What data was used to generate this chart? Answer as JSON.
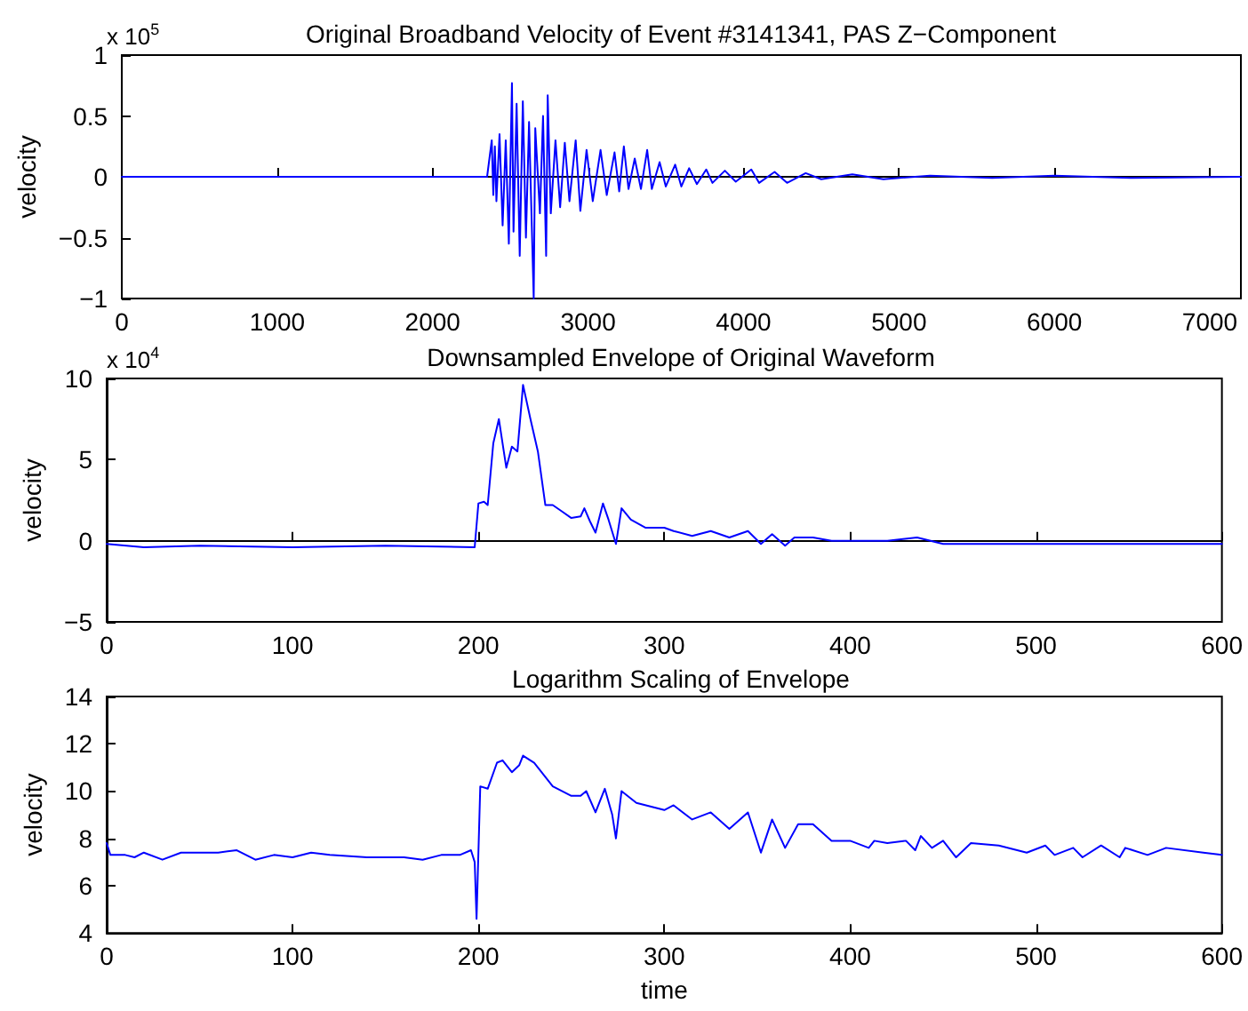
{
  "chart_data": [
    {
      "type": "line",
      "title": "Original Broadband Velocity of Event #3141341, PAS Z−Component",
      "ylabel": "velocity",
      "annotations": [
        "x 10$^{5}$"
      ],
      "xlim": [
        0,
        7200
      ],
      "xticks": [
        0,
        1000,
        2000,
        3000,
        4000,
        5000,
        6000,
        7000
      ],
      "ylim": [
        -1,
        1
      ],
      "yticks": [
        -1,
        -0.5,
        0,
        0.5,
        1
      ],
      "marker": "none",
      "line_style": "solid",
      "series": [
        {
          "color": "#0000ff",
          "x": [
            0,
            500,
            1000,
            1500,
            2000,
            2350,
            2380,
            2390,
            2400,
            2410,
            2430,
            2450,
            2470,
            2490,
            2510,
            2520,
            2540,
            2560,
            2580,
            2600,
            2620,
            2650,
            2660,
            2690,
            2710,
            2730,
            2740,
            2760,
            2790,
            2820,
            2850,
            2880,
            2920,
            2950,
            2990,
            3030,
            3080,
            3120,
            3170,
            3200,
            3230,
            3260,
            3300,
            3340,
            3380,
            3410,
            3460,
            3500,
            3560,
            3600,
            3650,
            3700,
            3760,
            3800,
            3880,
            3950,
            4050,
            4100,
            4200,
            4280,
            4400,
            4500,
            4700,
            4900,
            5200,
            5600,
            6000,
            6500,
            7200
          ],
          "values": [
            0,
            0,
            0,
            0,
            0,
            0,
            0.3,
            -0.15,
            0.25,
            -0.2,
            0.35,
            -0.4,
            0.3,
            -0.55,
            0.77,
            -0.45,
            0.6,
            -0.65,
            0.62,
            -0.5,
            0.45,
            -1,
            0.4,
            -0.3,
            0.5,
            -0.65,
            0.67,
            -0.3,
            0.3,
            -0.25,
            0.28,
            -0.2,
            0.3,
            -0.28,
            0.22,
            -0.2,
            0.22,
            -0.15,
            0.2,
            -0.12,
            0.25,
            -0.1,
            0.15,
            -0.1,
            0.22,
            -0.1,
            0.12,
            -0.08,
            0.1,
            -0.08,
            0.07,
            -0.06,
            0.06,
            -0.05,
            0.05,
            -0.04,
            0.06,
            -0.05,
            0.04,
            -0.05,
            0.03,
            -0.02,
            0.02,
            -0.02,
            0.01,
            -0.01,
            0.01,
            -0.01,
            0
          ]
        }
      ]
    },
    {
      "type": "line",
      "title": "Downsampled Envelope of Original Waveform",
      "ylabel": "velocity",
      "annotations": [
        "x 10$^{4}$"
      ],
      "xlim": [
        0,
        600
      ],
      "xticks": [
        0,
        100,
        200,
        300,
        400,
        500,
        600
      ],
      "ylim": [
        -5,
        10
      ],
      "yticks": [
        -5,
        0,
        5,
        10
      ],
      "marker": "none",
      "line_style": "solid",
      "series": [
        {
          "color": "#0000ff",
          "x": [
            0,
            20,
            50,
            100,
            150,
            198,
            200,
            203,
            205,
            208,
            211,
            215,
            218,
            221,
            224,
            228,
            232,
            236,
            240,
            245,
            250,
            255,
            257,
            260,
            263,
            267,
            270,
            274,
            277,
            282,
            290,
            300,
            305,
            315,
            325,
            335,
            345,
            352,
            358,
            365,
            370,
            380,
            390,
            420,
            436,
            450,
            500,
            600
          ],
          "values": [
            -0.2,
            -0.4,
            -0.3,
            -0.4,
            -0.3,
            -0.4,
            2.3,
            2.4,
            2.2,
            6,
            7.5,
            4.5,
            5.8,
            5.5,
            9.6,
            7.5,
            5.5,
            2.2,
            2.2,
            1.8,
            1.4,
            1.5,
            2,
            1.2,
            0.5,
            2.3,
            1.3,
            -0.2,
            2,
            1.3,
            0.8,
            0.8,
            0.6,
            0.3,
            0.6,
            0.2,
            0.6,
            -0.2,
            0.4,
            -0.3,
            0.2,
            0.2,
            0,
            0,
            0.2,
            -0.2,
            -0.2,
            -0.2
          ]
        }
      ]
    },
    {
      "type": "line",
      "title": "Logarithm Scaling of Envelope",
      "xlabel": "time",
      "ylabel": "velocity",
      "xlim": [
        0,
        600
      ],
      "xticks": [
        0,
        100,
        200,
        300,
        400,
        500,
        600
      ],
      "ylim": [
        4,
        14
      ],
      "yticks": [
        4,
        6,
        8,
        10,
        12,
        14
      ],
      "marker": "none",
      "line_style": "solid",
      "series": [
        {
          "color": "#0000ff",
          "x": [
            0,
            2,
            10,
            15,
            20,
            30,
            40,
            60,
            70,
            80,
            90,
            100,
            110,
            120,
            140,
            160,
            170,
            180,
            190,
            196,
            198,
            199,
            201,
            205,
            210,
            213,
            218,
            222,
            224,
            230,
            240,
            250,
            255,
            258,
            263,
            268,
            272,
            274,
            277,
            285,
            300,
            305,
            315,
            325,
            335,
            345,
            352,
            358,
            365,
            372,
            380,
            390,
            400,
            410,
            413,
            420,
            430,
            435,
            438,
            444,
            450,
            457,
            465,
            480,
            495,
            505,
            510,
            520,
            525,
            535,
            545,
            548,
            560,
            570,
            590,
            600
          ],
          "values": [
            7.8,
            7.3,
            7.3,
            7.2,
            7.4,
            7.1,
            7.4,
            7.4,
            7.5,
            7.1,
            7.3,
            7.2,
            7.4,
            7.3,
            7.2,
            7.2,
            7.1,
            7.3,
            7.3,
            7.5,
            7,
            4.6,
            10.2,
            10.1,
            11.2,
            11.3,
            10.8,
            11.1,
            11.5,
            11.2,
            10.2,
            9.8,
            9.8,
            10,
            9.1,
            10.1,
            9,
            8,
            10,
            9.5,
            9.2,
            9.4,
            8.8,
            9.1,
            8.4,
            9.1,
            7.4,
            8.8,
            7.6,
            8.6,
            8.6,
            7.9,
            7.9,
            7.6,
            7.9,
            7.8,
            7.9,
            7.5,
            8.1,
            7.6,
            7.9,
            7.2,
            7.8,
            7.7,
            7.4,
            7.7,
            7.3,
            7.6,
            7.2,
            7.7,
            7.2,
            7.6,
            7.3,
            7.6,
            7.4,
            7.3
          ]
        }
      ]
    }
  ]
}
